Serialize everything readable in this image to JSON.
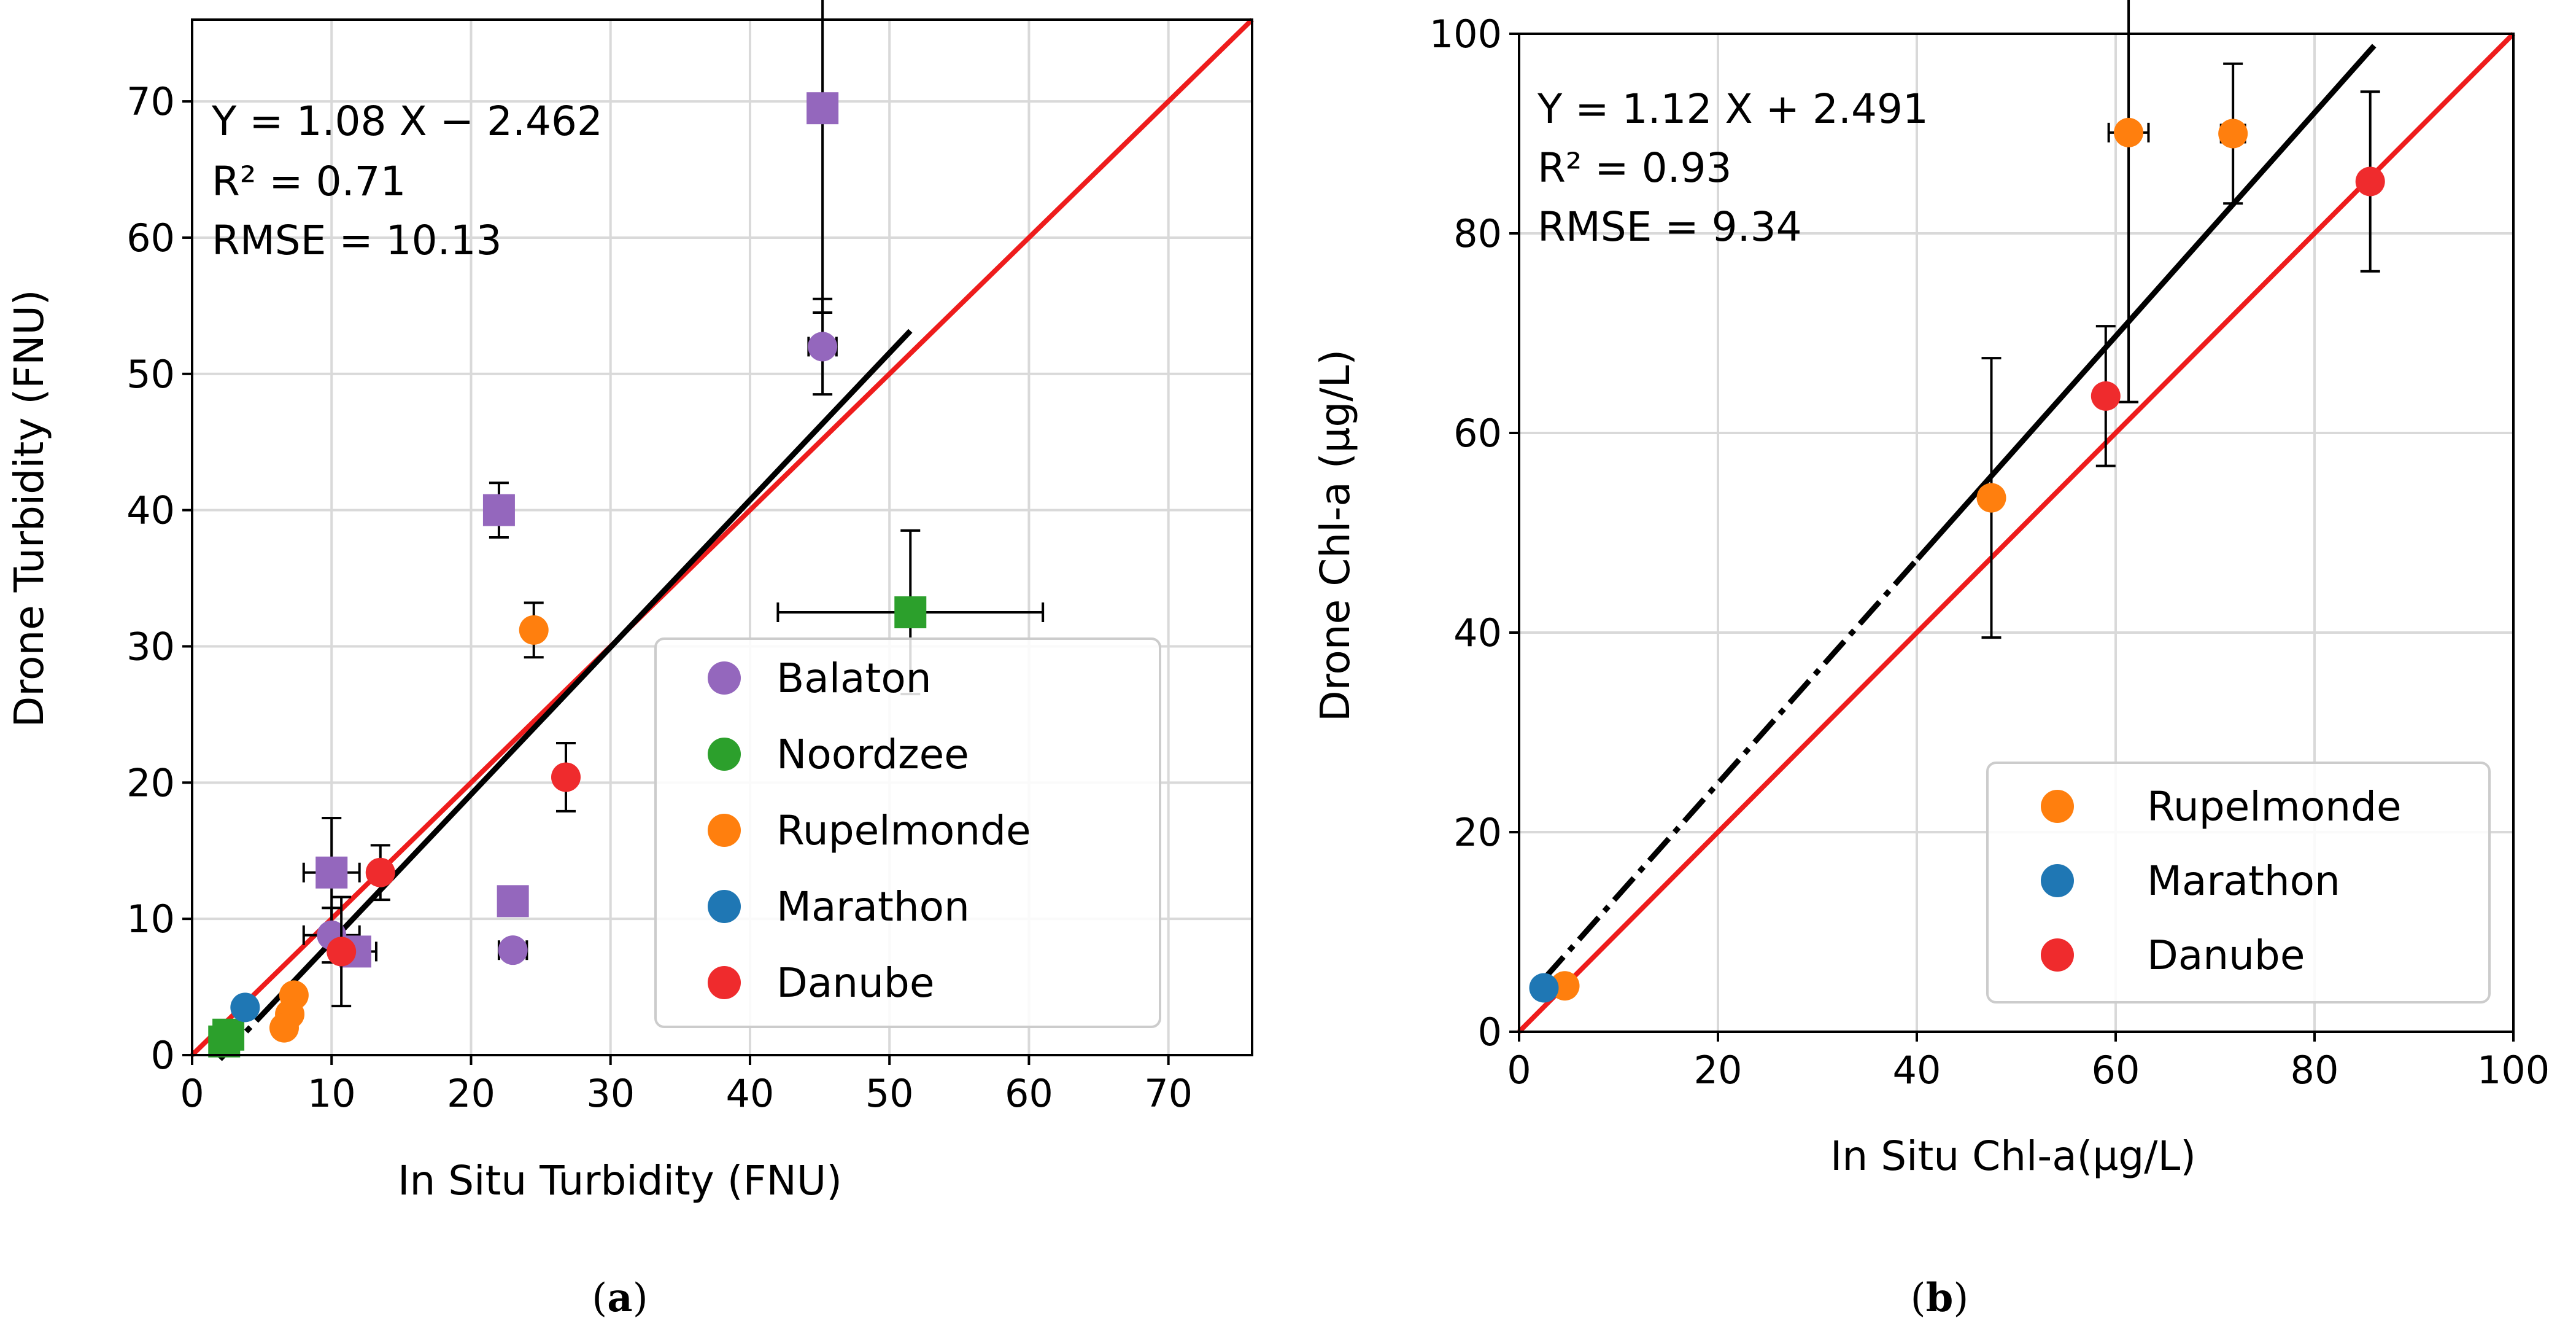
{
  "colors": {
    "Balaton": "#9467bd",
    "Noordzee": "#2ca02c",
    "Rupelmonde": "#ff7f0e",
    "Marathon": "#1f77b4",
    "Danube": "#ef2b2d",
    "one_to_one": "#ee1c1c",
    "fit": "#000000",
    "grid": "#d9d9d9"
  },
  "chart_data": [
    {
      "id": "a",
      "type": "scatter",
      "caption_letter": "a",
      "xlabel": "In Situ Turbidity (FNU)",
      "ylabel": "Drone Turbidity (FNU)",
      "xlim": [
        0,
        76
      ],
      "ylim": [
        0,
        76
      ],
      "xticks": [
        0,
        10,
        20,
        30,
        40,
        50,
        60,
        70
      ],
      "yticks": [
        0,
        10,
        20,
        30,
        40,
        50,
        60,
        70
      ],
      "stats": [
        "Y = 1.08 X − 2.462",
        "R² = 0.71",
        "RMSE = 10.13"
      ],
      "fit_line": {
        "slope": 1.08,
        "intercept": -2.462,
        "x_range": [
          2,
          51.5
        ]
      },
      "one_to_one": true,
      "legend": [
        "Balaton",
        "Noordzee",
        "Rupelmonde",
        "Marathon",
        "Danube"
      ],
      "series": [
        {
          "name": "Balaton",
          "points": [
            {
              "x": 45.2,
              "y": 69.5,
              "marker": "square",
              "yerr": [
                15,
                15
              ]
            },
            {
              "x": 45.2,
              "y": 52.0,
              "marker": "circle",
              "xerr": [
                1,
                1
              ],
              "yerr": [
                3.5,
                3.5
              ]
            },
            {
              "x": 22.0,
              "y": 40.0,
              "marker": "square",
              "xerr": [
                1,
                1
              ],
              "yerr": [
                2,
                2
              ]
            },
            {
              "x": 23.0,
              "y": 11.3,
              "marker": "square",
              "xerr": [
                1,
                1
              ]
            },
            {
              "x": 23.0,
              "y": 7.7,
              "marker": "circle",
              "xerr": [
                1,
                1
              ]
            },
            {
              "x": 10.0,
              "y": 13.4,
              "marker": "square",
              "xerr": [
                2,
                2
              ],
              "yerr": [
                4,
                4
              ]
            },
            {
              "x": 10.0,
              "y": 8.8,
              "marker": "circle",
              "xerr": [
                2,
                2
              ],
              "yerr": [
                2,
                2
              ]
            },
            {
              "x": 11.7,
              "y": 7.6,
              "marker": "square",
              "xerr": [
                1.5,
                1.5
              ]
            }
          ]
        },
        {
          "name": "Noordzee",
          "points": [
            {
              "x": 51.5,
              "y": 32.5,
              "marker": "square",
              "xerr": [
                9.5,
                9.5
              ],
              "yerr": [
                6,
                6
              ]
            },
            {
              "x": 2.6,
              "y": 1.5,
              "marker": "square"
            },
            {
              "x": 2.3,
              "y": 1.0,
              "marker": "square"
            }
          ]
        },
        {
          "name": "Rupelmonde",
          "points": [
            {
              "x": 24.5,
              "y": 31.2,
              "marker": "circle",
              "yerr": [
                2,
                2
              ]
            },
            {
              "x": 7.3,
              "y": 4.4,
              "marker": "circle"
            },
            {
              "x": 7.0,
              "y": 3.0,
              "marker": "circle"
            },
            {
              "x": 6.6,
              "y": 2.0,
              "marker": "circle"
            }
          ]
        },
        {
          "name": "Marathon",
          "points": [
            {
              "x": 3.8,
              "y": 3.5,
              "marker": "circle"
            }
          ]
        },
        {
          "name": "Danube",
          "points": [
            {
              "x": 26.8,
              "y": 20.4,
              "marker": "circle",
              "yerr": [
                2.5,
                2.5
              ]
            },
            {
              "x": 13.5,
              "y": 13.4,
              "marker": "circle",
              "yerr": [
                2,
                2
              ]
            },
            {
              "x": 10.7,
              "y": 7.6,
              "marker": "circle",
              "yerr": [
                4,
                4
              ]
            }
          ]
        }
      ]
    },
    {
      "id": "b",
      "type": "scatter",
      "caption_letter": "b",
      "xlabel": "In Situ Chl-a(µg/L)",
      "ylabel": "Drone Chl-a (µg/L)",
      "xlim": [
        0,
        100
      ],
      "ylim": [
        0,
        100
      ],
      "xticks": [
        0,
        20,
        40,
        60,
        80,
        100
      ],
      "yticks": [
        0,
        20,
        40,
        60,
        80,
        100
      ],
      "stats": [
        "Y = 1.12 X + 2.491",
        "R² = 0.93",
        "RMSE = 9.34"
      ],
      "fit_line": {
        "slope": 1.12,
        "intercept": 2.491,
        "x_range": [
          2.5,
          86
        ]
      },
      "one_to_one": true,
      "legend": [
        "Rupelmonde",
        "Marathon",
        "Danube"
      ],
      "series": [
        {
          "name": "Rupelmonde",
          "points": [
            {
              "x": 61.3,
              "y": 90.1,
              "marker": "circle",
              "xerr": [
                2,
                2
              ],
              "yerr": [
                27,
                27
              ]
            },
            {
              "x": 71.8,
              "y": 90.0,
              "marker": "circle",
              "xerr": [
                1.2,
                1.2
              ],
              "yerr": [
                7,
                7
              ]
            },
            {
              "x": 47.5,
              "y": 53.5,
              "marker": "circle",
              "yerr": [
                14,
                14
              ]
            },
            {
              "x": 4.6,
              "y": 4.6,
              "marker": "circle"
            }
          ]
        },
        {
          "name": "Marathon",
          "points": [
            {
              "x": 2.5,
              "y": 4.4,
              "marker": "circle"
            }
          ]
        },
        {
          "name": "Danube",
          "points": [
            {
              "x": 85.6,
              "y": 85.2,
              "marker": "circle",
              "yerr": [
                9,
                9
              ]
            },
            {
              "x": 59.0,
              "y": 63.7,
              "marker": "circle",
              "yerr": [
                7,
                7
              ]
            }
          ]
        }
      ]
    }
  ]
}
